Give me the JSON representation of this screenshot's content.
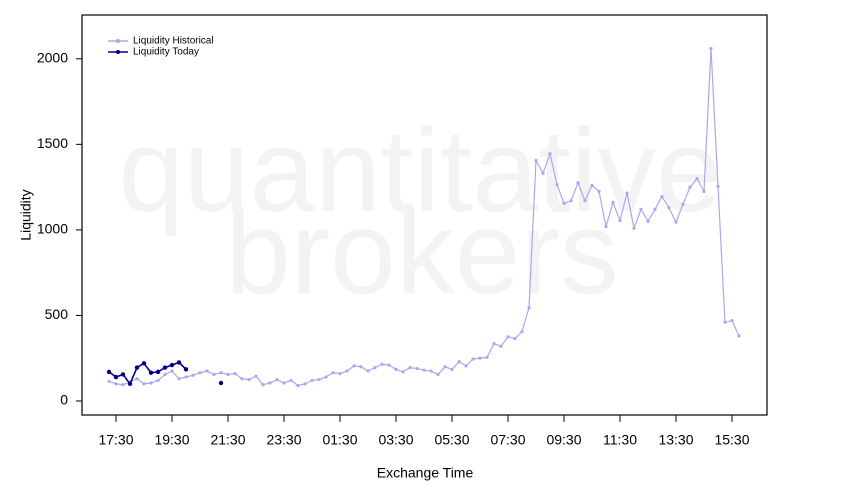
{
  "chart_data": {
    "type": "line",
    "watermark": [
      "quantitative",
      "brokers"
    ],
    "x_label": "Exchange Time",
    "y_label": "Liquidity",
    "ylim": [
      -82,
      2256
    ],
    "yticks": [
      0,
      500,
      1000,
      1500,
      2000
    ],
    "legend": "top-left",
    "categories": [
      null,
      "17:30",
      null,
      null,
      null,
      null,
      null,
      null,
      null,
      "19:30",
      null,
      null,
      null,
      null,
      null,
      null,
      null,
      "21:30",
      null,
      null,
      null,
      null,
      null,
      null,
      null,
      "23:30",
      null,
      null,
      null,
      null,
      null,
      null,
      null,
      "01:30",
      null,
      null,
      null,
      null,
      null,
      null,
      null,
      "03:30",
      null,
      null,
      null,
      null,
      null,
      null,
      null,
      "05:30",
      null,
      null,
      null,
      null,
      null,
      null,
      null,
      "07:30",
      null,
      null,
      null,
      null,
      null,
      null,
      null,
      "09:30",
      null,
      null,
      null,
      null,
      null,
      null,
      null,
      "11:30",
      null,
      null,
      null,
      null,
      null,
      null,
      null,
      "13:30",
      null,
      null,
      null,
      null,
      null,
      null,
      null,
      "15:30",
      null
    ],
    "series": [
      {
        "name": "Liquidity Historical",
        "color": "#a8a8f0",
        "values": [
          115,
          100,
          95,
          110,
          130,
          100,
          105,
          120,
          155,
          175,
          130,
          140,
          150,
          165,
          175,
          155,
          165,
          155,
          160,
          130,
          125,
          145,
          95,
          105,
          125,
          105,
          120,
          90,
          100,
          120,
          125,
          140,
          165,
          160,
          175,
          205,
          200,
          175,
          195,
          215,
          210,
          185,
          170,
          195,
          190,
          180,
          175,
          155,
          200,
          185,
          230,
          205,
          245,
          250,
          255,
          335,
          320,
          375,
          365,
          405,
          545,
          1405,
          1330,
          1445,
          1265,
          1155,
          1170,
          1275,
          1170,
          1260,
          1225,
          1020,
          1160,
          1055,
          1215,
          1010,
          1120,
          1050,
          1120,
          1195,
          1130,
          1045,
          1150,
          1250,
          1300,
          1225,
          2060,
          1255,
          460,
          470,
          380
        ]
      },
      {
        "name": "Liquidity Today",
        "color": "#00008b",
        "values": [
          170,
          140,
          155,
          100,
          195,
          220,
          165,
          170,
          195,
          210,
          225,
          185,
          null,
          null,
          null,
          null,
          105,
          null,
          null,
          null,
          null,
          null,
          null,
          null,
          null,
          null,
          null,
          null,
          null,
          null,
          null,
          null,
          null,
          null,
          null,
          null,
          null,
          null,
          null,
          null,
          null,
          null,
          null,
          null,
          null,
          null,
          null,
          null,
          null,
          null,
          null,
          null,
          null,
          null,
          null,
          null,
          null,
          null,
          null,
          null,
          null,
          null,
          null,
          null,
          null,
          null,
          null,
          null,
          null,
          null,
          null,
          null,
          null,
          null,
          null,
          null,
          null,
          null,
          null,
          null,
          null,
          null,
          null,
          null,
          null,
          null,
          null,
          null,
          null,
          null,
          null
        ]
      }
    ]
  }
}
